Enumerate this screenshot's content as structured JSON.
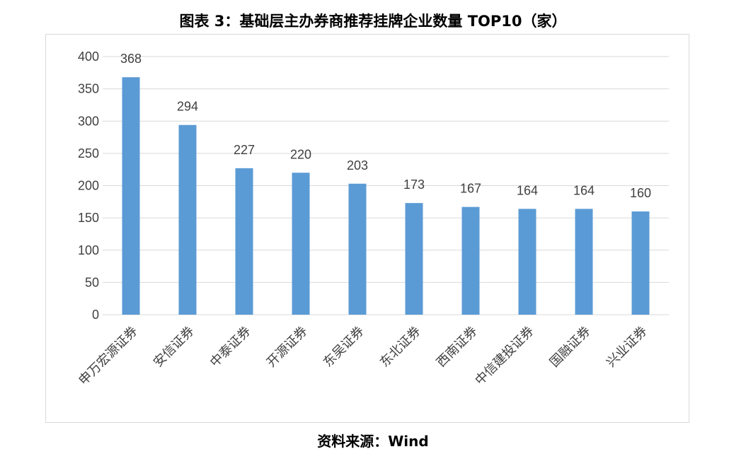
{
  "figure": {
    "title": "图表 3：基础层主办券商推荐挂牌企业数量 TOP10（家）",
    "source": "资料来源：Wind"
  },
  "chart_data": {
    "type": "bar",
    "title": "图表 3：基础层主办券商推荐挂牌企业数量 TOP10（家）",
    "xlabel": "",
    "ylabel": "",
    "categories": [
      "申万宏源证券",
      "安信证券",
      "中泰证券",
      "开源证券",
      "东吴证券",
      "东北证券",
      "西南证券",
      "中信建投证券",
      "国融证券",
      "兴业证券"
    ],
    "values": [
      368,
      294,
      227,
      220,
      203,
      173,
      167,
      164,
      164,
      160
    ],
    "ylim": [
      0,
      400
    ],
    "yticks": [
      0,
      50,
      100,
      150,
      200,
      250,
      300,
      350,
      400
    ],
    "grid": true,
    "legend": "none",
    "bar_color": "#5b9bd5",
    "grid_color": "#d9d9d9",
    "text_color": "#404040"
  }
}
